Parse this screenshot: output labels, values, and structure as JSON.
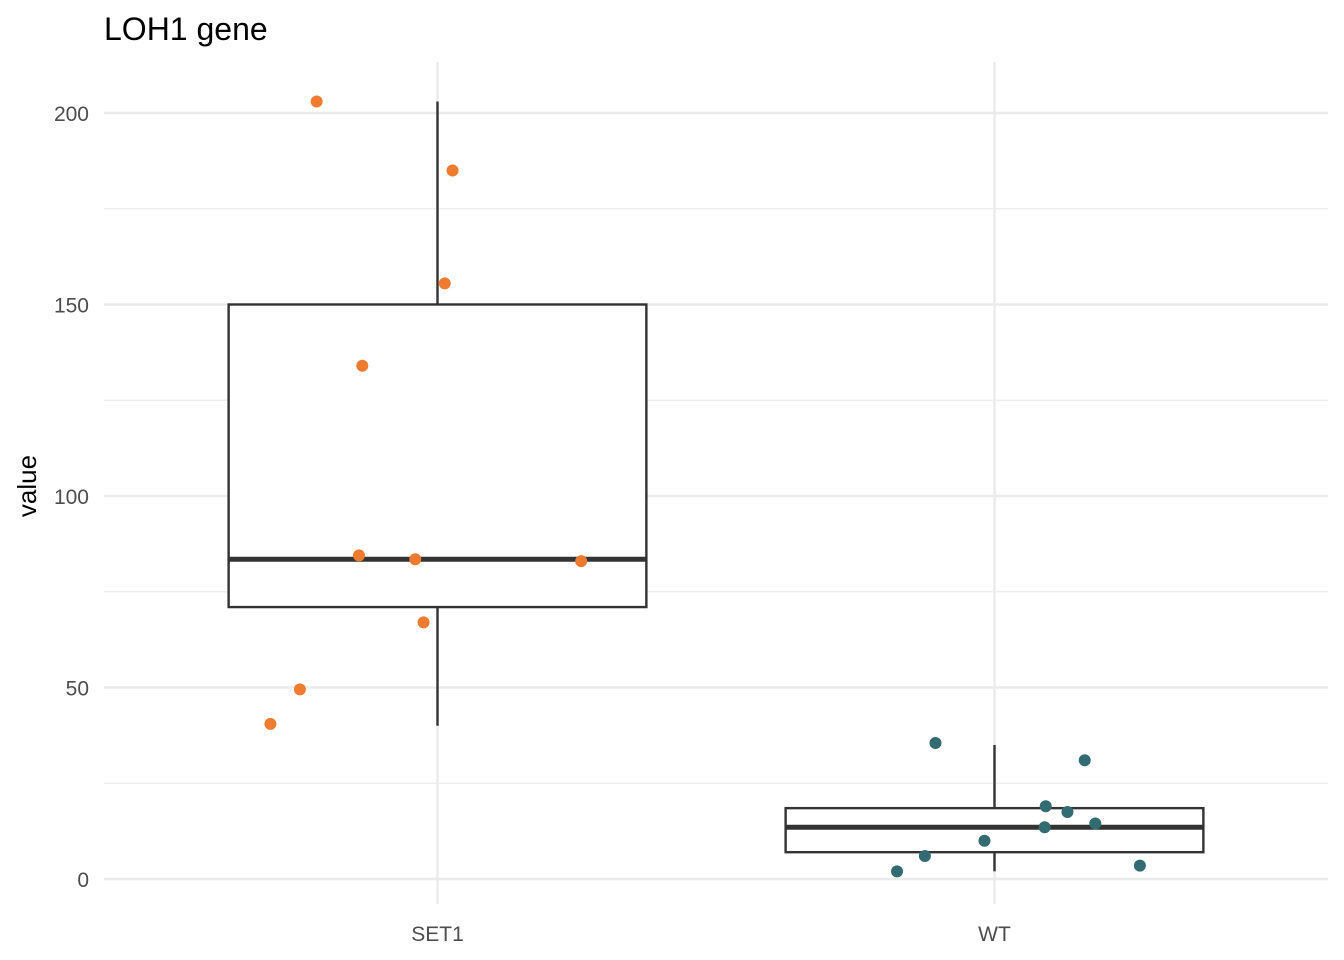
{
  "chart_data": {
    "type": "boxplot",
    "title": "LOH1 gene",
    "xlabel": "",
    "ylabel": "value",
    "ylim": [
      -6.5,
      213
    ],
    "y_major_ticks": [
      0,
      50,
      100,
      150,
      200
    ],
    "y_minor_ticks": [
      25,
      75,
      125,
      175
    ],
    "grid": true,
    "legend": "none",
    "categories": [
      "SET1",
      "WT"
    ],
    "boxes": [
      {
        "name": "SET1",
        "whisker_low": 40,
        "q1": 71,
        "median": 83.5,
        "q3": 150,
        "whisker_high": 203
      },
      {
        "name": "WT",
        "whisker_low": 2,
        "q1": 7,
        "median": 13.5,
        "q3": 18.5,
        "whisker_high": 35
      }
    ],
    "points": [
      {
        "group": "SET1",
        "jitter": -0.217,
        "y": 203
      },
      {
        "group": "SET1",
        "jitter": 0.027,
        "y": 185
      },
      {
        "group": "SET1",
        "jitter": 0.013,
        "y": 155.5
      },
      {
        "group": "SET1",
        "jitter": -0.135,
        "y": 134
      },
      {
        "group": "SET1",
        "jitter": -0.141,
        "y": 84.5
      },
      {
        "group": "SET1",
        "jitter": -0.04,
        "y": 83.5
      },
      {
        "group": "SET1",
        "jitter": 0.258,
        "y": 83
      },
      {
        "group": "SET1",
        "jitter": -0.025,
        "y": 67
      },
      {
        "group": "SET1",
        "jitter": -0.247,
        "y": 49.5
      },
      {
        "group": "SET1",
        "jitter": -0.3,
        "y": 40.5
      },
      {
        "group": "WT",
        "jitter": -0.106,
        "y": 35.5
      },
      {
        "group": "WT",
        "jitter": 0.162,
        "y": 31
      },
      {
        "group": "WT",
        "jitter": 0.092,
        "y": 19
      },
      {
        "group": "WT",
        "jitter": 0.131,
        "y": 17.5
      },
      {
        "group": "WT",
        "jitter": 0.09,
        "y": 13.5
      },
      {
        "group": "WT",
        "jitter": 0.181,
        "y": 14.5
      },
      {
        "group": "WT",
        "jitter": -0.018,
        "y": 10
      },
      {
        "group": "WT",
        "jitter": -0.125,
        "y": 6
      },
      {
        "group": "WT",
        "jitter": -0.175,
        "y": 2
      },
      {
        "group": "WT",
        "jitter": 0.261,
        "y": 3.5
      }
    ],
    "colors": {
      "SET1": "#ee7b30",
      "WT": "#336b72",
      "box_stroke": "#333333",
      "grid": "#ebebeb"
    }
  }
}
